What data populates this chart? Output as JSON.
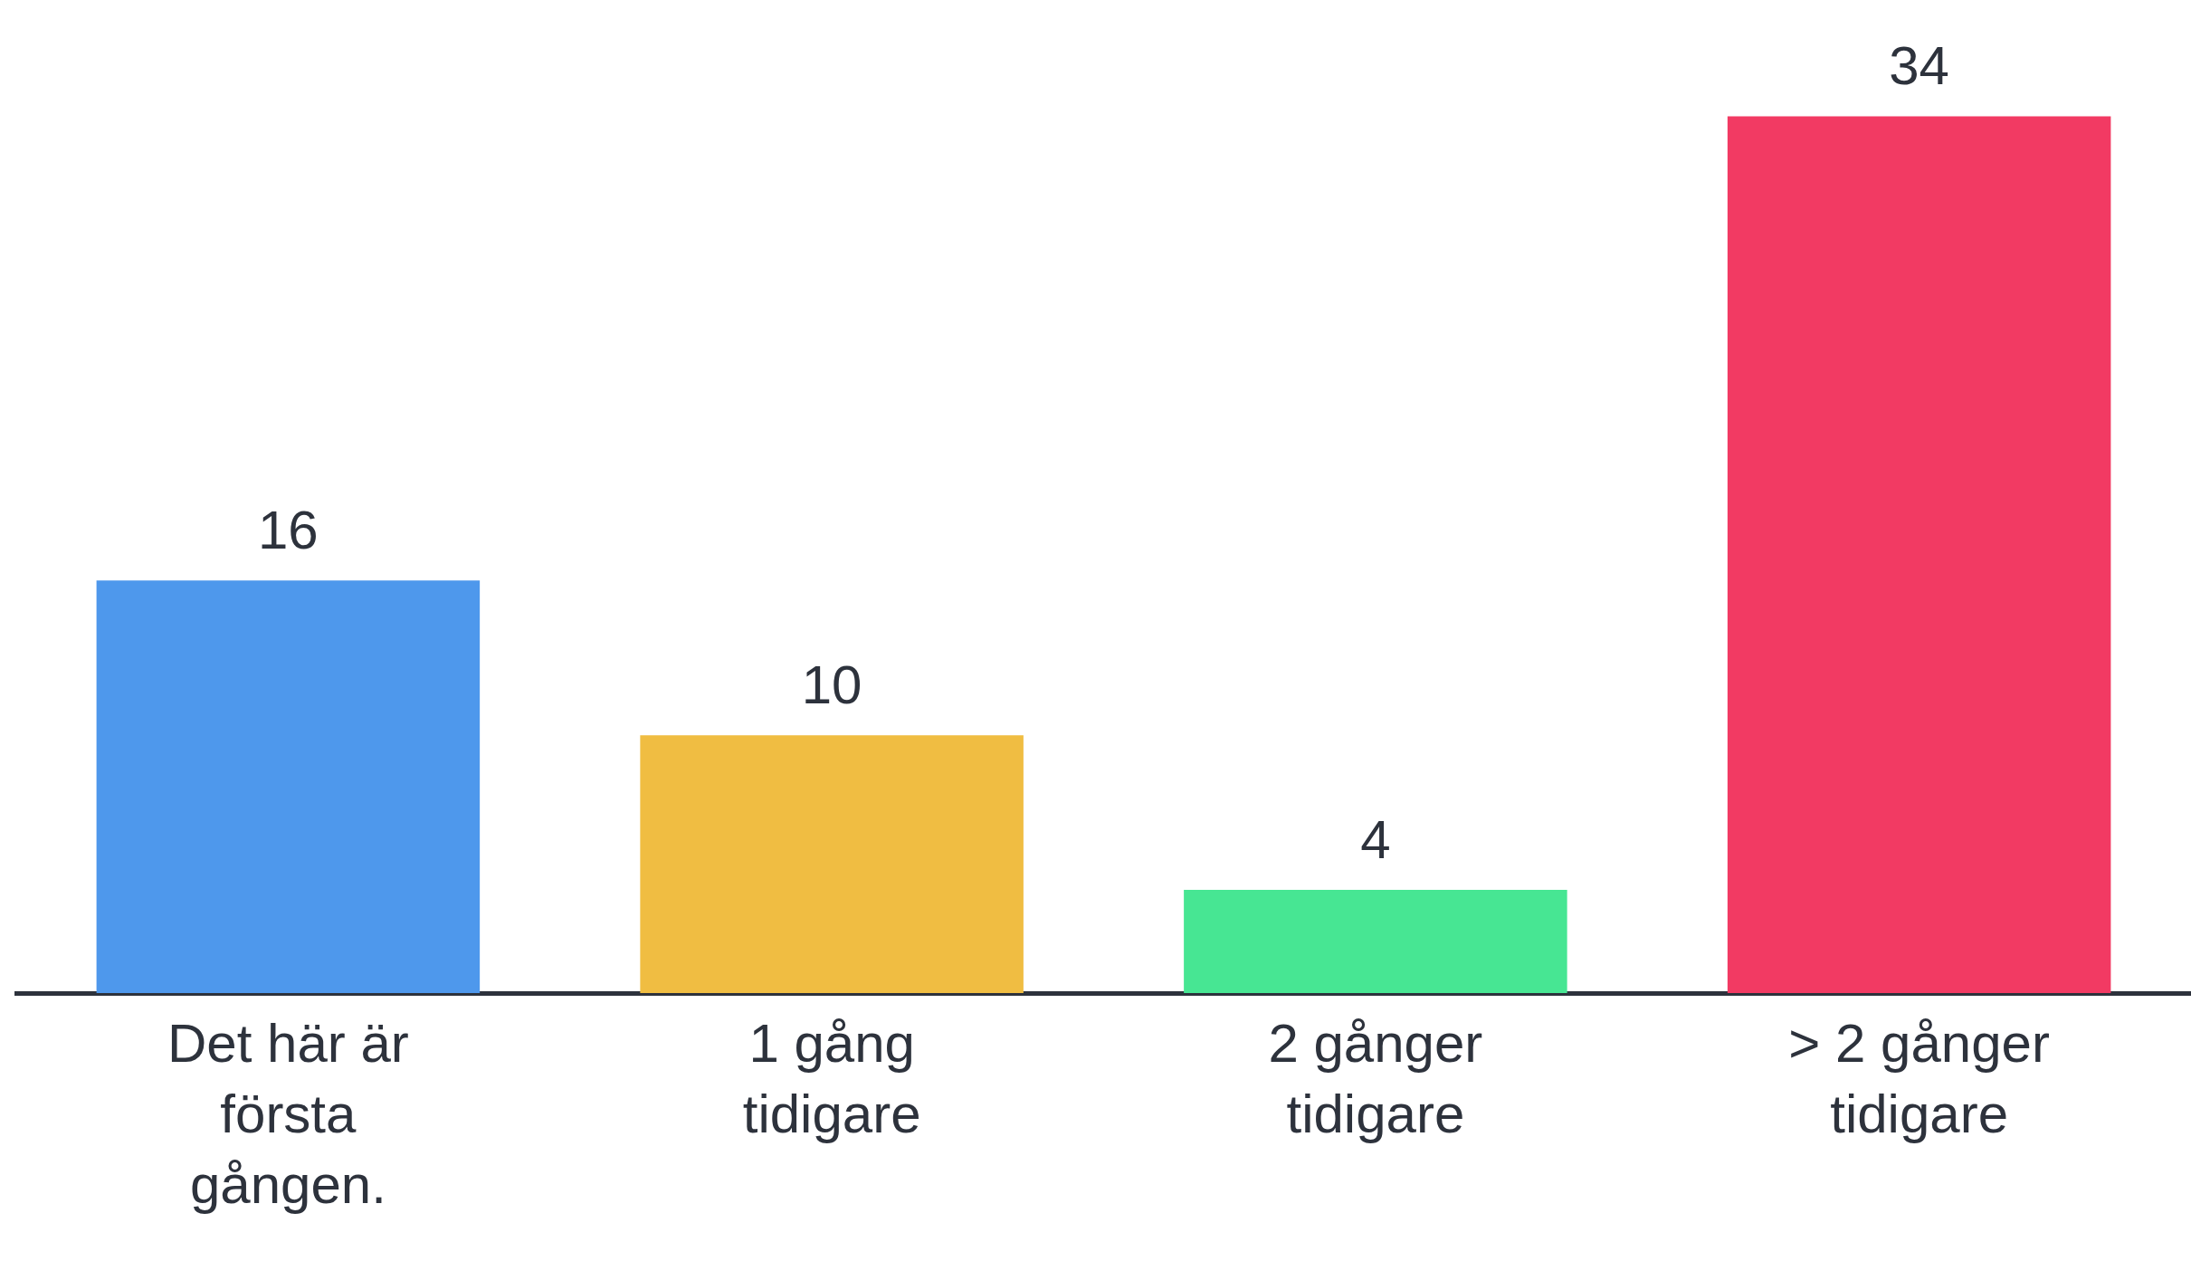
{
  "chart_data": {
    "type": "bar",
    "categories": [
      "Det här är första gången.",
      "1 gång tidigare",
      "2 gånger tidigare",
      "> 2 gånger tidigare"
    ],
    "values": [
      16,
      10,
      4,
      34
    ],
    "colors": [
      "#4e98ec",
      "#f0bd42",
      "#47e693",
      "#f23a63"
    ],
    "data_labels": true
  }
}
